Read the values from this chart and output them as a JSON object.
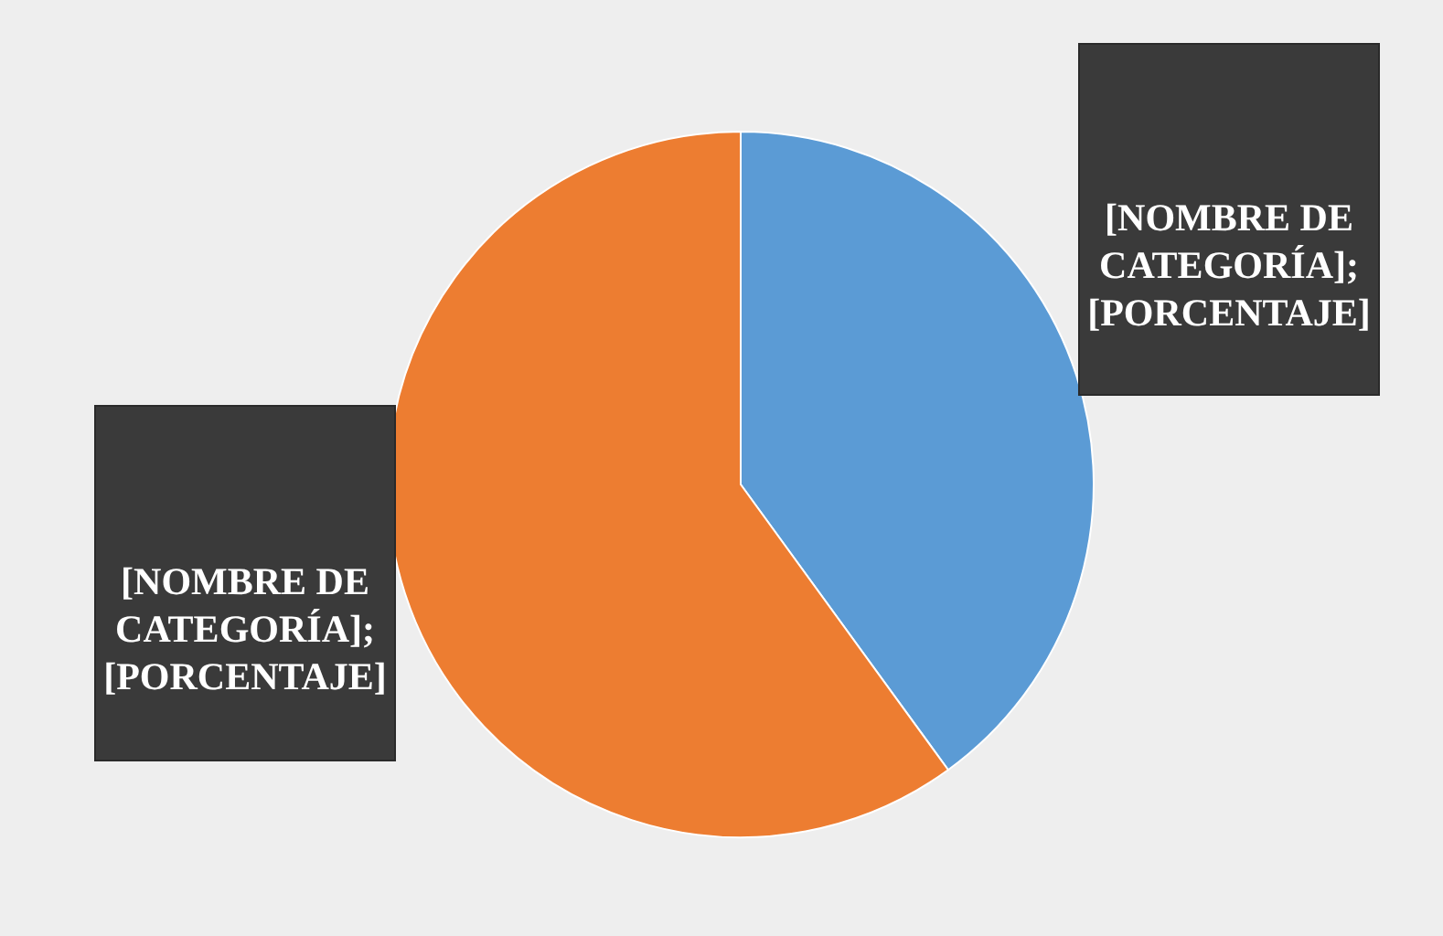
{
  "chart_data": {
    "type": "pie",
    "categories": [
      null,
      null
    ],
    "values": [
      40,
      60
    ],
    "colors": [
      "#5b9bd5",
      "#ed7d31"
    ],
    "value_labels": [
      "[NOMBRE DE CATEGORÍA]; [PORCENTAJE]",
      "[NOMBRE DE CATEGORÍA]; [PORCENTAJE]"
    ]
  }
}
